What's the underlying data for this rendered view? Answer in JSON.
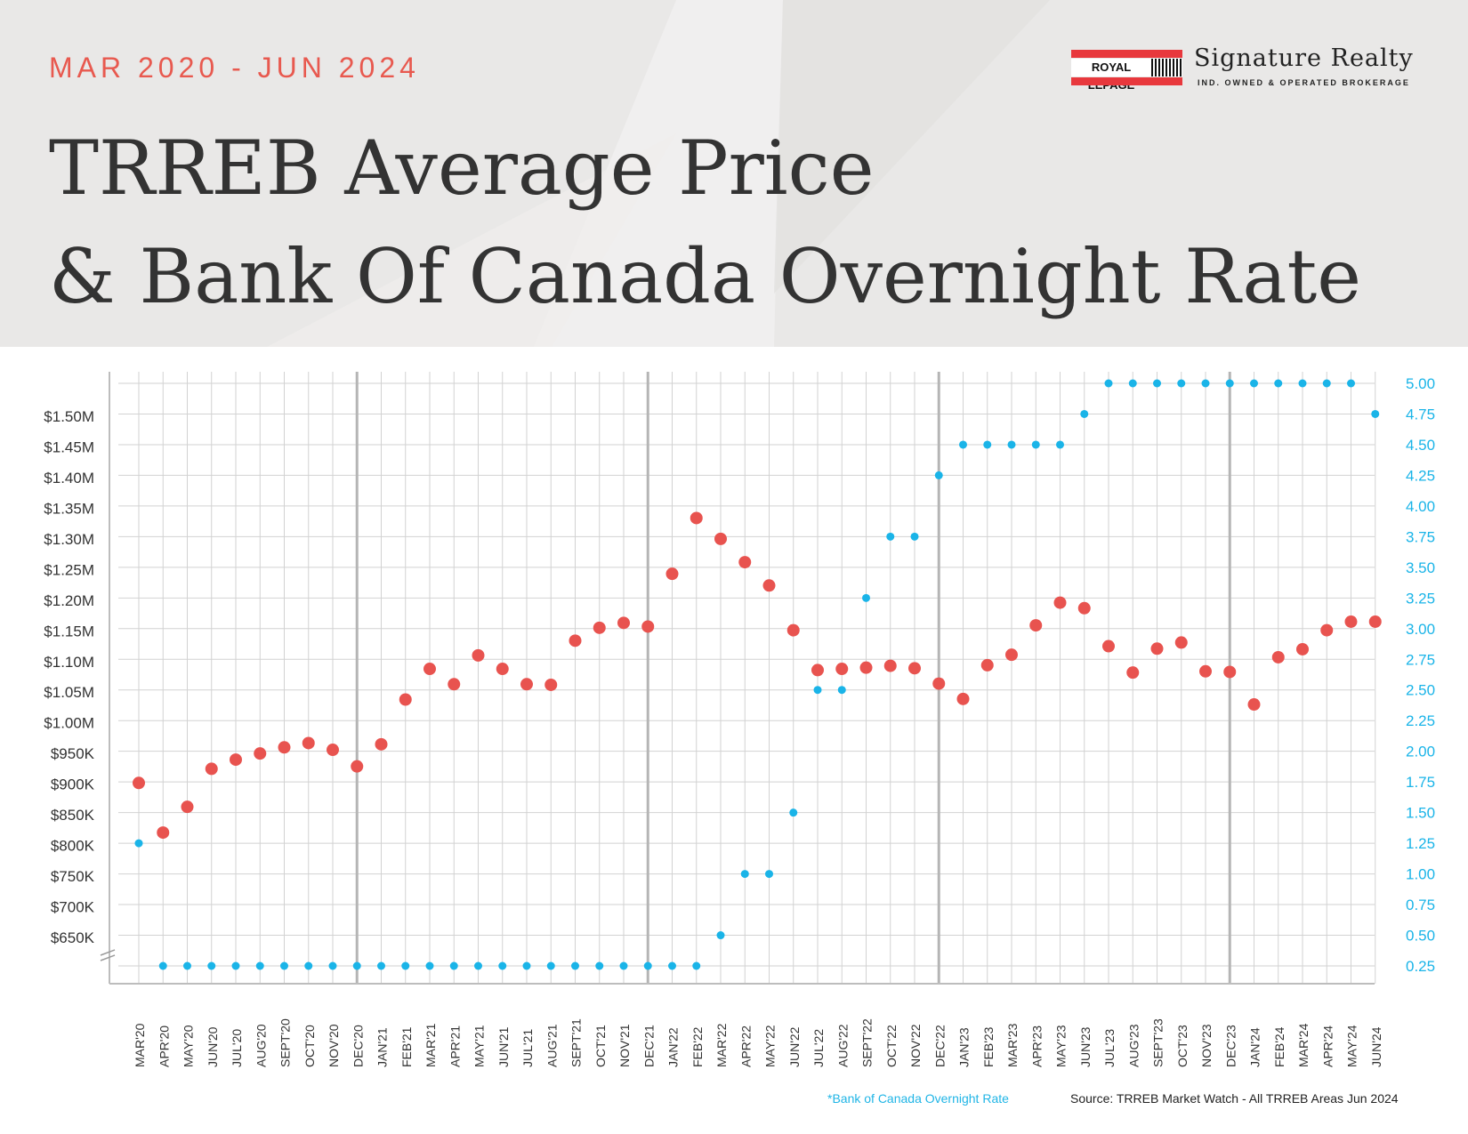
{
  "header": {
    "date_range": "MAR 2020 - JUN 2024",
    "title_line1": "TRREB Average Price",
    "title_line2": "& Bank Of Canada Overnight Rate"
  },
  "logo": {
    "wordmark": "ROYAL LEPAGE",
    "brand_name": "Signature Realty",
    "tagline": "IND. OWNED & OPERATED BROKERAGE"
  },
  "footer": {
    "rate_note": "*Bank of Canada Overnight Rate",
    "source": "Source: TRREB Market Watch - All TRREB Areas Jun 2024"
  },
  "colors": {
    "price": "#e8534f",
    "rate": "#1ab4e8",
    "title": "#333333",
    "date_range": "#e8594f"
  },
  "chart_data": {
    "type": "scatter",
    "categories": [
      "MAR'20",
      "APR'20",
      "MAY'20",
      "JUN'20",
      "JUL'20",
      "AUG'20",
      "SEPT'20",
      "OCT'20",
      "NOV'20",
      "DEC'20",
      "JAN'21",
      "FEB'21",
      "MAR'21",
      "APR'21",
      "MAY'21",
      "JUN'21",
      "JUL'21",
      "AUG'21",
      "SEPT'21",
      "OCT'21",
      "NOV'21",
      "DEC'21",
      "JAN'22",
      "FEB'22",
      "MAR'22",
      "APR'22",
      "MAY'22",
      "JUN'22",
      "JUL'22",
      "AUG'22",
      "SEPT'22",
      "OCT'22",
      "NOV'22",
      "DEC'22",
      "JAN'23",
      "FEB'23",
      "MAR'23",
      "APR'23",
      "MAY'23",
      "JUN'23",
      "JUL'23",
      "AUG'23",
      "SEPT'23",
      "OCT'23",
      "NOV'23",
      "DEC'23",
      "JAN'24",
      "FEB'24",
      "MAR'24",
      "APR'24",
      "MAY'24",
      "JUN'24"
    ],
    "year_dividers": [
      "DEC'20",
      "DEC'21",
      "DEC'22",
      "DEC'23"
    ],
    "price": {
      "axis": "left",
      "ticks": [
        650000,
        700000,
        750000,
        800000,
        850000,
        900000,
        950000,
        1000000,
        1050000,
        1100000,
        1150000,
        1200000,
        1250000,
        1300000,
        1350000,
        1400000,
        1450000,
        1500000
      ],
      "tick_labels": [
        "$650K",
        "$700K",
        "$750K",
        "$800K",
        "$850K",
        "$900K",
        "$950K",
        "$1.00M",
        "$1.05M",
        "$1.10M",
        "$1.15M",
        "$1.20M",
        "$1.25M",
        "$1.30M",
        "$1.35M",
        "$1.40M",
        "$1.45M",
        "$1.50M"
      ],
      "values": [
        902000,
        821000,
        863000,
        925000,
        940000,
        950000,
        960000,
        967000,
        956000,
        929000,
        965000,
        1038000,
        1088000,
        1063000,
        1110000,
        1088000,
        1063000,
        1062000,
        1134000,
        1155000,
        1163000,
        1157000,
        1243000,
        1334000,
        1300000,
        1262000,
        1224000,
        1151000,
        1086000,
        1088000,
        1090000,
        1093000,
        1089000,
        1064000,
        1039000,
        1094000,
        1111000,
        1159000,
        1196000,
        1187000,
        1125000,
        1082000,
        1121000,
        1131000,
        1084000,
        1083000,
        1030000,
        1107000,
        1120000,
        1151000,
        1165000,
        1165000
      ]
    },
    "rate": {
      "axis": "right",
      "ylim": [
        0.25,
        5.0
      ],
      "ticks": [
        0.25,
        0.5,
        0.75,
        1.0,
        1.25,
        1.5,
        1.75,
        2.0,
        2.25,
        2.5,
        2.75,
        3.0,
        3.25,
        3.5,
        3.75,
        4.0,
        4.25,
        4.5,
        4.75,
        5.0
      ],
      "tick_labels": [
        "0.25",
        "0.50",
        "0.75",
        "1.00",
        "1.25",
        "1.50",
        "1.75",
        "2.00",
        "2.25",
        "2.50",
        "2.75",
        "3.00",
        "3.25",
        "3.50",
        "3.75",
        "4.00",
        "4.25",
        "4.50",
        "4.75",
        "5.00"
      ],
      "values": [
        1.25,
        0.25,
        0.25,
        0.25,
        0.25,
        0.25,
        0.25,
        0.25,
        0.25,
        0.25,
        0.25,
        0.25,
        0.25,
        0.25,
        0.25,
        0.25,
        0.25,
        0.25,
        0.25,
        0.25,
        0.25,
        0.25,
        0.25,
        0.25,
        0.5,
        1.0,
        1.0,
        1.5,
        2.5,
        2.5,
        3.25,
        3.75,
        3.75,
        4.25,
        4.5,
        4.5,
        4.5,
        4.5,
        4.5,
        4.75,
        5.0,
        5.0,
        5.0,
        5.0,
        5.0,
        5.0,
        5.0,
        5.0,
        5.0,
        5.0,
        5.0,
        4.75
      ]
    },
    "grid": true
  }
}
